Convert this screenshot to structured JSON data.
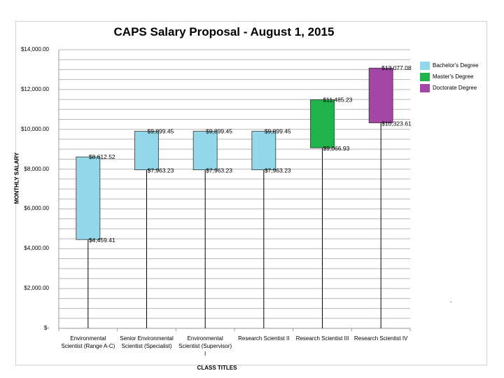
{
  "chart_data": {
    "type": "bar",
    "subtype": "floating-range",
    "title": "CAPS Salary Proposal - August 1, 2015",
    "xlabel": "CLASS TITLES",
    "ylabel": "MONTHLY SALARY",
    "ylim": [
      0,
      14000
    ],
    "ytick_labels": [
      "$-",
      "$2,000.00",
      "$4,000.00",
      "$6,000.00",
      "$8,000.00",
      "$10,000.00",
      "$12,000.00",
      "$14,000.00"
    ],
    "ytick_values": [
      0,
      2000,
      4000,
      6000,
      8000,
      10000,
      12000,
      14000
    ],
    "minor_gridline_step": 500,
    "grid": true,
    "legend_position": "right",
    "categories": [
      "Environmental Scientist (Range A-C)",
      "Senior Environmental Scientist (Specialist)",
      "Environmental Scientist (Supervisor)",
      "Research Scientist II",
      "Research Scientist III",
      "Research Scientist IV"
    ],
    "category_labels": [
      [
        "Environmental",
        "Scientist (Range A-C)"
      ],
      [
        "Senior Environmental",
        "Scientist (Specialist)"
      ],
      [
        "Environmental",
        "Scientist (Supervisor)",
        "I"
      ],
      [
        "Research Scientist II"
      ],
      [
        "Research Scientist III"
      ],
      [
        "Research Scientist IV"
      ]
    ],
    "series": [
      {
        "name": "Bachelor's Degree",
        "color": "#93d8ea"
      },
      {
        "name": "Master's Degree",
        "color": "#21b34b"
      },
      {
        "name": "Doctorate Degree",
        "color": "#a346a6"
      }
    ],
    "ranges": [
      {
        "low": 4459.41,
        "high": 8612.52,
        "low_label": "$4,459.41",
        "high_label": "$8,612.52",
        "series": 0
      },
      {
        "low": 7963.23,
        "high": 9899.45,
        "low_label": "$7,963.23",
        "high_label": "$9,899.45",
        "series": 0
      },
      {
        "low": 7963.23,
        "high": 9899.45,
        "low_label": "$7,963.23",
        "high_label": "$9,899.45",
        "series": 0
      },
      {
        "low": 7963.23,
        "high": 9899.45,
        "low_label": "$7,963.23",
        "high_label": "$9,899.45",
        "series": 0
      },
      {
        "low": 9066.93,
        "high": 11485.23,
        "low_label": "$9,066.93",
        "high_label": "$11,485.23",
        "series": 1
      },
      {
        "low": 10323.61,
        "high": 13077.08,
        "low_label": "$10,323.61",
        "high_label": "$13,077.08",
        "series": 2
      }
    ]
  },
  "stray_mark": "."
}
